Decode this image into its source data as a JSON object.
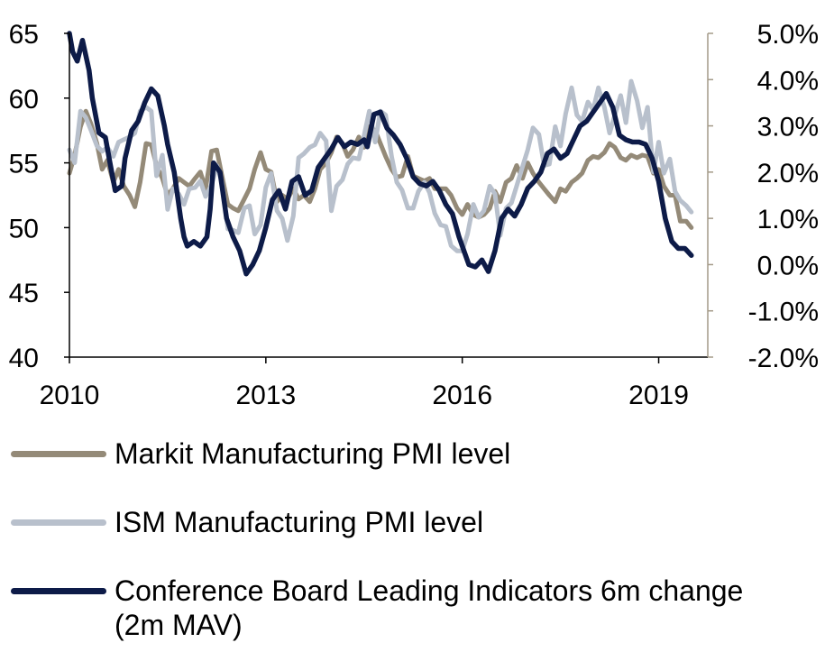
{
  "chart_data": {
    "type": "line",
    "title": "",
    "xlabel": "",
    "ylabel": "",
    "x_ticks": [
      "2010",
      "2013",
      "2016",
      "2019"
    ],
    "x_range": [
      2010.0,
      2019.75
    ],
    "y_left_ticks": [
      "65",
      "60",
      "55",
      "50",
      "45",
      "40"
    ],
    "y_left_range": [
      40,
      65
    ],
    "y_right_ticks": [
      "5.0%",
      "4.0%",
      "3.0%",
      "2.0%",
      "1.0%",
      "0.0%",
      "-1.0%",
      "-2.0%"
    ],
    "y_right_range": [
      -2.0,
      5.0
    ],
    "grid": false,
    "legend_position": "bottom",
    "series": [
      {
        "name": "Markit Manufacturing PMI level",
        "axis": "left",
        "color": "#948a78",
        "x": [
          2010.0,
          2010.08,
          2010.17,
          2010.25,
          2010.33,
          2010.42,
          2010.5,
          2010.58,
          2010.67,
          2010.75,
          2010.83,
          2010.92,
          2011.0,
          2011.08,
          2011.17,
          2011.25,
          2011.33,
          2011.42,
          2011.5,
          2011.58,
          2011.67,
          2011.75,
          2011.83,
          2011.92,
          2012.0,
          2012.08,
          2012.17,
          2012.25,
          2012.33,
          2012.42,
          2012.5,
          2012.58,
          2012.67,
          2012.75,
          2012.83,
          2012.92,
          2013.0,
          2013.08,
          2013.17,
          2013.25,
          2013.33,
          2013.42,
          2013.5,
          2013.58,
          2013.67,
          2013.75,
          2013.83,
          2013.92,
          2014.0,
          2014.08,
          2014.17,
          2014.25,
          2014.33,
          2014.42,
          2014.5,
          2014.58,
          2014.67,
          2014.75,
          2014.83,
          2014.92,
          2015.0,
          2015.08,
          2015.17,
          2015.25,
          2015.33,
          2015.42,
          2015.5,
          2015.58,
          2015.67,
          2015.75,
          2015.83,
          2015.92,
          2016.0,
          2016.08,
          2016.17,
          2016.25,
          2016.33,
          2016.42,
          2016.5,
          2016.58,
          2016.67,
          2016.75,
          2016.83,
          2016.92,
          2017.0,
          2017.08,
          2017.17,
          2017.25,
          2017.33,
          2017.42,
          2017.5,
          2017.58,
          2017.67,
          2017.75,
          2017.83,
          2017.92,
          2018.0,
          2018.08,
          2018.17,
          2018.25,
          2018.33,
          2018.42,
          2018.5,
          2018.58,
          2018.67,
          2018.75,
          2018.83,
          2018.92,
          2019.0,
          2019.08,
          2019.17,
          2019.25,
          2019.33,
          2019.42,
          2019.5
        ],
        "values": [
          54.2,
          55.6,
          57.8,
          59.0,
          58.0,
          56.5,
          54.5,
          55.2,
          53.5,
          54.5,
          53.2,
          52.5,
          51.6,
          53.5,
          56.5,
          56.4,
          54.8,
          53.8,
          52.5,
          53.0,
          53.8,
          53.5,
          53.2,
          53.8,
          54.3,
          53.0,
          55.9,
          56.0,
          54.0,
          51.8,
          51.5,
          51.3,
          52.2,
          53.0,
          54.5,
          55.8,
          54.5,
          54.3,
          52.0,
          52.5,
          52.2,
          53.0,
          52.2,
          52.5,
          52.0,
          53.0,
          54.5,
          55.0,
          55.8,
          57.0,
          56.5,
          55.5,
          56.0,
          57.0,
          56.2,
          57.8,
          57.5,
          56.5,
          55.5,
          54.5,
          53.9,
          54.0,
          55.5,
          54.0,
          53.8,
          53.6,
          53.8,
          53.0,
          53.0,
          53.0,
          52.5,
          51.5,
          51.0,
          51.8,
          51.0,
          50.8,
          51.0,
          51.5,
          52.8,
          52.0,
          53.5,
          53.8,
          54.8,
          53.8,
          55.0,
          54.2,
          53.5,
          53.0,
          52.5,
          52.0,
          53.0,
          52.8,
          53.5,
          53.8,
          54.2,
          55.2,
          55.5,
          55.4,
          55.8,
          56.5,
          56.2,
          55.4,
          55.2,
          55.6,
          55.4,
          55.6,
          55.5,
          54.2,
          54.5,
          53.2,
          52.5,
          52.5,
          50.5,
          50.5,
          50.0
        ]
      },
      {
        "name": "ISM Manufacturing PMI level",
        "axis": "left",
        "color": "#b8c0cc",
        "x": [
          2010.0,
          2010.08,
          2010.17,
          2010.25,
          2010.33,
          2010.42,
          2010.5,
          2010.58,
          2010.67,
          2010.75,
          2010.83,
          2010.92,
          2011.0,
          2011.08,
          2011.17,
          2011.25,
          2011.33,
          2011.42,
          2011.5,
          2011.58,
          2011.67,
          2011.75,
          2011.83,
          2011.92,
          2012.0,
          2012.08,
          2012.17,
          2012.25,
          2012.33,
          2012.42,
          2012.5,
          2012.58,
          2012.67,
          2012.75,
          2012.83,
          2012.92,
          2013.0,
          2013.08,
          2013.17,
          2013.25,
          2013.33,
          2013.42,
          2013.5,
          2013.58,
          2013.67,
          2013.75,
          2013.83,
          2013.92,
          2014.0,
          2014.08,
          2014.17,
          2014.25,
          2014.33,
          2014.42,
          2014.5,
          2014.58,
          2014.67,
          2014.75,
          2014.83,
          2014.92,
          2015.0,
          2015.08,
          2015.17,
          2015.25,
          2015.33,
          2015.42,
          2015.5,
          2015.58,
          2015.67,
          2015.75,
          2015.83,
          2015.92,
          2016.0,
          2016.08,
          2016.17,
          2016.25,
          2016.33,
          2016.42,
          2016.5,
          2016.58,
          2016.67,
          2016.75,
          2016.83,
          2016.92,
          2017.0,
          2017.08,
          2017.17,
          2017.25,
          2017.33,
          2017.42,
          2017.5,
          2017.58,
          2017.67,
          2017.75,
          2017.83,
          2017.92,
          2018.0,
          2018.08,
          2018.17,
          2018.25,
          2018.33,
          2018.42,
          2018.5,
          2018.58,
          2018.67,
          2018.75,
          2018.83,
          2018.92,
          2019.0,
          2019.08,
          2019.17,
          2019.25,
          2019.33,
          2019.42,
          2019.5
        ],
        "values": [
          56.0,
          55.0,
          59.0,
          58.5,
          57.5,
          56.3,
          55.9,
          56.2,
          55.5,
          56.6,
          56.8,
          57.0,
          57.3,
          59.0,
          59.3,
          59.0,
          54.0,
          55.6,
          51.4,
          53.0,
          52.6,
          51.8,
          53.0,
          53.1,
          53.6,
          52.4,
          53.3,
          54.8,
          53.5,
          49.9,
          49.8,
          49.6,
          51.5,
          51.7,
          49.5,
          50.2,
          53.1,
          54.2,
          51.3,
          50.7,
          49.0,
          50.9,
          55.4,
          55.7,
          56.2,
          56.4,
          57.3,
          56.7,
          51.3,
          53.2,
          53.7,
          54.9,
          55.4,
          55.3,
          57.1,
          59.0,
          56.6,
          59.0,
          58.7,
          55.5,
          53.5,
          52.9,
          51.5,
          51.5,
          52.8,
          53.5,
          52.7,
          51.1,
          50.2,
          50.1,
          48.6,
          48.2,
          48.2,
          49.5,
          51.8,
          50.8,
          51.3,
          53.2,
          52.6,
          49.4,
          51.5,
          51.9,
          53.2,
          54.7,
          56.0,
          57.7,
          57.2,
          54.8,
          54.9,
          57.8,
          56.3,
          58.8,
          60.8,
          58.7,
          58.2,
          59.7,
          59.1,
          60.8,
          59.3,
          57.3,
          58.7,
          60.2,
          58.1,
          61.3,
          59.8,
          57.7,
          59.3,
          54.3,
          56.6,
          54.2,
          55.3,
          52.8,
          52.1,
          51.7,
          51.2
        ]
      },
      {
        "name": "Conference Board Leading Indicators 6m change (2m MAV)",
        "axis": "right",
        "color": "#0d1b48",
        "x": [
          2010.0,
          2010.05,
          2010.12,
          2010.2,
          2010.3,
          2010.35,
          2010.45,
          2010.55,
          2010.62,
          2010.7,
          2010.8,
          2010.85,
          2010.95,
          2011.05,
          2011.15,
          2011.25,
          2011.35,
          2011.45,
          2011.5,
          2011.6,
          2011.7,
          2011.75,
          2011.8,
          2011.9,
          2012.0,
          2012.1,
          2012.15,
          2012.2,
          2012.3,
          2012.4,
          2012.5,
          2012.6,
          2012.7,
          2012.8,
          2012.9,
          2013.0,
          2013.1,
          2013.2,
          2013.3,
          2013.4,
          2013.5,
          2013.6,
          2013.7,
          2013.8,
          2013.9,
          2014.0,
          2014.1,
          2014.2,
          2014.3,
          2014.4,
          2014.5,
          2014.55,
          2014.65,
          2014.75,
          2014.85,
          2014.95,
          2015.05,
          2015.15,
          2015.25,
          2015.35,
          2015.45,
          2015.55,
          2015.65,
          2015.75,
          2015.85,
          2015.95,
          2016.0,
          2016.1,
          2016.2,
          2016.3,
          2016.4,
          2016.5,
          2016.6,
          2016.7,
          2016.8,
          2016.9,
          2017.0,
          2017.1,
          2017.2,
          2017.3,
          2017.4,
          2017.5,
          2017.6,
          2017.7,
          2017.8,
          2017.9,
          2018.0,
          2018.1,
          2018.2,
          2018.3,
          2018.4,
          2018.5,
          2018.6,
          2018.7,
          2018.8,
          2018.9,
          2019.0,
          2019.1,
          2019.2,
          2019.3,
          2019.4,
          2019.5
        ],
        "values": [
          5.0,
          4.6,
          4.4,
          4.85,
          4.2,
          3.6,
          2.85,
          2.75,
          2.2,
          1.6,
          1.7,
          2.3,
          2.9,
          3.1,
          3.5,
          3.8,
          3.65,
          3.0,
          2.6,
          2.0,
          1.0,
          0.6,
          0.4,
          0.5,
          0.4,
          0.6,
          1.2,
          2.2,
          2.0,
          1.0,
          0.6,
          0.3,
          -0.2,
          0.0,
          0.3,
          0.8,
          1.4,
          1.6,
          1.2,
          1.8,
          1.9,
          1.5,
          1.6,
          2.1,
          2.3,
          2.5,
          2.75,
          2.55,
          2.65,
          2.6,
          2.7,
          2.55,
          3.25,
          3.3,
          2.95,
          2.8,
          2.6,
          2.3,
          1.9,
          1.75,
          1.7,
          1.8,
          1.6,
          1.3,
          1.1,
          0.6,
          0.4,
          0.0,
          -0.05,
          0.1,
          -0.15,
          0.3,
          1.0,
          1.2,
          1.05,
          1.3,
          1.65,
          1.8,
          2.0,
          2.4,
          2.5,
          2.3,
          2.4,
          2.7,
          3.0,
          3.1,
          3.3,
          3.5,
          3.7,
          3.4,
          2.8,
          2.7,
          2.65,
          2.65,
          2.6,
          2.3,
          1.8,
          1.0,
          0.5,
          0.35,
          0.35,
          0.2
        ]
      }
    ]
  }
}
